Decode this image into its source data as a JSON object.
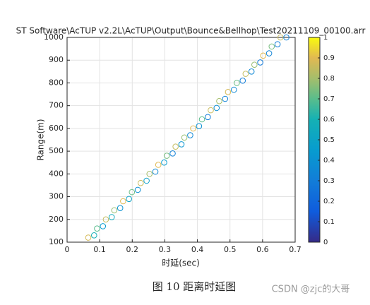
{
  "chart_data": {
    "type": "scatter",
    "title": "ST Software\\AcTUP v2.2L\\AcTUP\\Output\\Bounce&Bellhop\\Test20211109_00100.arr",
    "x_label": "时延(sec)",
    "y_label": "Range(m)",
    "xlim": [
      0,
      0.7
    ],
    "xticks": [
      0,
      0.1,
      0.2,
      0.3,
      0.4,
      0.5,
      0.6,
      0.7
    ],
    "ylim": [
      100,
      1000
    ],
    "yticks": [
      100,
      200,
      300,
      400,
      500,
      600,
      700,
      800,
      900,
      1000
    ],
    "grid": true,
    "colorbar": {
      "clim": [
        0,
        1
      ],
      "ticks": [
        0,
        0.1,
        0.2,
        0.3,
        0.4,
        0.5,
        0.6,
        0.7,
        0.8,
        0.9,
        1
      ],
      "colormap": "parula"
    },
    "series": [
      {
        "x": [
          0.065,
          0.092,
          0.119,
          0.145,
          0.172,
          0.199,
          0.226,
          0.253,
          0.28,
          0.306,
          0.333,
          0.36,
          0.387,
          0.414,
          0.441,
          0.467,
          0.494,
          0.521,
          0.548,
          0.575,
          0.602,
          0.628,
          0.655
        ],
        "values": [
          120,
          160,
          200,
          240,
          280,
          320,
          360,
          400,
          440,
          480,
          520,
          560,
          600,
          640,
          680,
          720,
          760,
          800,
          840,
          880,
          920,
          960,
          1000
        ],
        "c": [
          0.88,
          0.7,
          0.85,
          0.78,
          0.9,
          0.72,
          0.86,
          0.8,
          0.9,
          0.74,
          0.85,
          0.78,
          0.9,
          0.7,
          0.86,
          0.8,
          0.88,
          0.72,
          0.85,
          0.78,
          0.9,
          0.74,
          0.86
        ]
      },
      {
        "x": [
          0.083,
          0.11,
          0.137,
          0.163,
          0.19,
          0.217,
          0.244,
          0.271,
          0.298,
          0.324,
          0.351,
          0.378,
          0.405,
          0.432,
          0.459,
          0.485,
          0.512,
          0.539,
          0.566,
          0.593,
          0.62,
          0.646,
          0.673
        ],
        "values": [
          130,
          170,
          210,
          250,
          290,
          330,
          370,
          410,
          450,
          490,
          530,
          570,
          610,
          650,
          690,
          730,
          770,
          810,
          850,
          890,
          930,
          970,
          1000
        ],
        "c": [
          0.6,
          0.45,
          0.55,
          0.4,
          0.5,
          0.38,
          0.48,
          0.35,
          0.45,
          0.32,
          0.42,
          0.35,
          0.4,
          0.3,
          0.38,
          0.33,
          0.36,
          0.3,
          0.35,
          0.28,
          0.33,
          0.3,
          0.32
        ]
      }
    ]
  },
  "caption": "图 10 距离时延图",
  "watermark": "CSDN @zjc的大哥"
}
